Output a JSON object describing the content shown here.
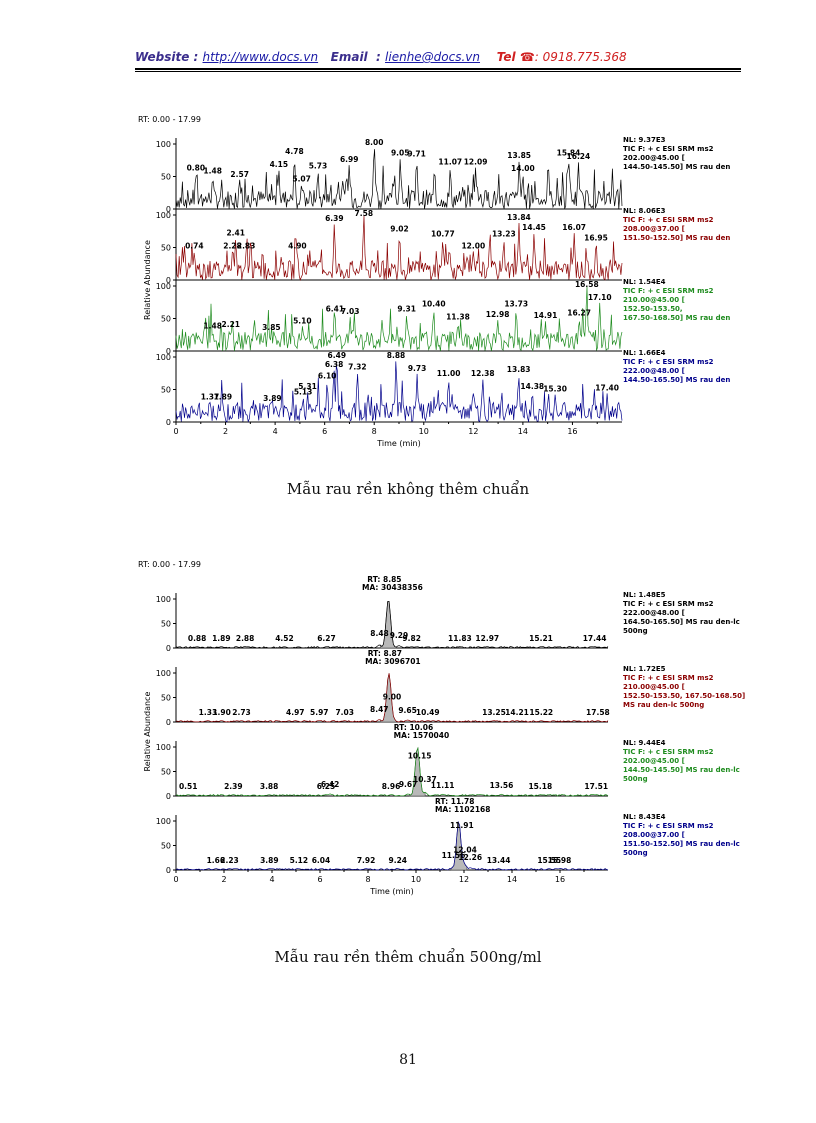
{
  "header": {
    "website_label": "Website :",
    "website_url": "http://www.docs.vn",
    "email_label": "Email",
    "email_colon": ":",
    "email_value": "lienhe@docs.vn",
    "tel_label": "Tel",
    "tel_icon": "phone-icon",
    "tel_value": ": 0918.775.368"
  },
  "colors": {
    "black": "#000000",
    "red": "#8b0000",
    "green": "#1f8c1f",
    "blue": "#00008b",
    "peak_fill": "#b8b8b8"
  },
  "chart_data": [
    {
      "type": "line",
      "rt_range": "RT: 0.00 - 17.99",
      "xlabel": "Time (min)",
      "ylabel": "Relative Abundance",
      "xlim": [
        0,
        18
      ],
      "ylim": [
        0,
        100
      ],
      "x_ticks": [
        "0",
        "2",
        "4",
        "6",
        "8",
        "10",
        "12",
        "14",
        "16"
      ],
      "y_ticks": [
        "0",
        "50",
        "100"
      ],
      "caption": "Mẫu rau rền không thêm chuẩn",
      "series": [
        {
          "name": "TIC F: + c ESI SRM ms2 202.00@45.00 [144.50-145.50] MS rau den",
          "color": "#000000",
          "info": [
            "NL: 9.37E3",
            "TIC F: + c ESI SRM ms2",
            "202.00@45.00 [",
            "144.50-145.50]  MS rau den"
          ],
          "peaks": [
            {
              "rt": 0.8,
              "label": "0.80",
              "y": 55
            },
            {
              "rt": 1.48,
              "label": "1.48",
              "y": 50
            },
            {
              "rt": 2.57,
              "label": "2.57",
              "y": 45
            },
            {
              "rt": 4.15,
              "label": "4.15",
              "y": 60
            },
            {
              "rt": 4.78,
              "label": "4.78",
              "y": 80
            },
            {
              "rt": 5.07,
              "label": "5.07",
              "y": 38
            },
            {
              "rt": 5.73,
              "label": "5.73",
              "y": 58
            },
            {
              "rt": 6.99,
              "label": "6.99",
              "y": 68
            },
            {
              "rt": 8.0,
              "label": "8.00",
              "y": 100
            },
            {
              "rt": 9.05,
              "label": "9.05",
              "y": 78
            },
            {
              "rt": 9.71,
              "label": "9.71",
              "y": 76
            },
            {
              "rt": 11.07,
              "label": "11.07",
              "y": 64
            },
            {
              "rt": 12.09,
              "label": "12.09",
              "y": 64
            },
            {
              "rt": 13.85,
              "label": "13.85",
              "y": 74
            },
            {
              "rt": 14.0,
              "label": "14.00",
              "y": 54
            },
            {
              "rt": 15.84,
              "label": "15.84",
              "y": 78
            },
            {
              "rt": 16.24,
              "label": "16.24",
              "y": 72
            }
          ]
        },
        {
          "name": "TIC F: + c ESI SRM ms2 208.00@37.00 [151.50-152.50] MS rau den",
          "color": "#8b0000",
          "info": [
            "NL: 8.06E3",
            "TIC F: + c ESI SRM ms2",
            "208.00@37.00 [",
            "151.50-152.50]  MS rau den"
          ],
          "peaks": [
            {
              "rt": 0.74,
              "label": "0.74",
              "y": 44
            },
            {
              "rt": 2.28,
              "label": "2.28",
              "y": 44
            },
            {
              "rt": 2.41,
              "label": "2.41",
              "y": 64
            },
            {
              "rt": 2.83,
              "label": "2.83",
              "y": 44
            },
            {
              "rt": 4.9,
              "label": "4.90",
              "y": 44
            },
            {
              "rt": 6.39,
              "label": "6.39",
              "y": 86
            },
            {
              "rt": 7.58,
              "label": "7.58",
              "y": 100
            },
            {
              "rt": 9.02,
              "label": "9.02",
              "y": 70
            },
            {
              "rt": 10.77,
              "label": "10.77",
              "y": 62
            },
            {
              "rt": 12.0,
              "label": "12.00",
              "y": 44
            },
            {
              "rt": 13.23,
              "label": "13.23",
              "y": 62
            },
            {
              "rt": 13.84,
              "label": "13.84",
              "y": 88
            },
            {
              "rt": 14.45,
              "label": "14.45",
              "y": 72
            },
            {
              "rt": 16.07,
              "label": "16.07",
              "y": 72
            },
            {
              "rt": 16.95,
              "label": "16.95",
              "y": 56
            }
          ]
        },
        {
          "name": "TIC F: + c ESI SRM ms2 210.00@45.00 [152.50-153.50, 167.50-168.50] MS rau den",
          "color": "#1f8c1f",
          "info": [
            "NL: 1.54E4",
            "TIC F: + c ESI SRM ms2",
            "210.00@45.00 [",
            "152.50-153.50,",
            "167.50-168.50]  MS rau den"
          ],
          "peaks": [
            {
              "rt": 1.48,
              "label": "1.48",
              "y": 30
            },
            {
              "rt": 2.21,
              "label": "2.21",
              "y": 32
            },
            {
              "rt": 3.85,
              "label": "3.85",
              "y": 28
            },
            {
              "rt": 5.1,
              "label": "5.10",
              "y": 38
            },
            {
              "rt": 6.41,
              "label": "6.41",
              "y": 56
            },
            {
              "rt": 7.03,
              "label": "7.03",
              "y": 52
            },
            {
              "rt": 9.31,
              "label": "9.31",
              "y": 56
            },
            {
              "rt": 10.4,
              "label": "10.40",
              "y": 64
            },
            {
              "rt": 11.38,
              "label": "11.38",
              "y": 44
            },
            {
              "rt": 12.98,
              "label": "12.98",
              "y": 48
            },
            {
              "rt": 13.73,
              "label": "13.73",
              "y": 64
            },
            {
              "rt": 14.91,
              "label": "14.91",
              "y": 46
            },
            {
              "rt": 16.27,
              "label": "16.27",
              "y": 50
            },
            {
              "rt": 16.58,
              "label": "16.58",
              "y": 100
            },
            {
              "rt": 17.1,
              "label": "17.10",
              "y": 74
            }
          ]
        },
        {
          "name": "TIC F: + c ESI SRM ms2 222.00@48.00 [144.50-165.50] MS rau den",
          "color": "#00008b",
          "info": [
            "NL: 1.66E4",
            "TIC F: + c ESI SRM ms2",
            "222.00@48.00 [",
            "144.50-165.50]  MS rau den"
          ],
          "peaks": [
            {
              "rt": 1.37,
              "label": "1.37",
              "y": 30
            },
            {
              "rt": 1.89,
              "label": "1.89",
              "y": 30
            },
            {
              "rt": 3.89,
              "label": "3.89",
              "y": 28
            },
            {
              "rt": 5.13,
              "label": "5.13",
              "y": 38
            },
            {
              "rt": 5.31,
              "label": "5.31",
              "y": 46
            },
            {
              "rt": 6.1,
              "label": "6.10",
              "y": 62
            },
            {
              "rt": 6.38,
              "label": "6.38",
              "y": 80
            },
            {
              "rt": 6.49,
              "label": "6.49",
              "y": 100
            },
            {
              "rt": 7.32,
              "label": "7.32",
              "y": 76
            },
            {
              "rt": 8.88,
              "label": "8.88",
              "y": 96
            },
            {
              "rt": 9.73,
              "label": "9.73",
              "y": 74
            },
            {
              "rt": 11.0,
              "label": "11.00",
              "y": 66
            },
            {
              "rt": 12.38,
              "label": "12.38",
              "y": 66
            },
            {
              "rt": 13.83,
              "label": "13.83",
              "y": 72
            },
            {
              "rt": 14.38,
              "label": "14.38",
              "y": 46
            },
            {
              "rt": 15.3,
              "label": "15.30",
              "y": 42
            },
            {
              "rt": 17.4,
              "label": "17.40",
              "y": 44
            }
          ]
        }
      ]
    },
    {
      "type": "line",
      "rt_range": "RT: 0.00 - 17.99",
      "xlabel": "Time (min)",
      "ylabel": "Relative Abundance",
      "xlim": [
        0,
        18
      ],
      "ylim": [
        0,
        100
      ],
      "x_ticks": [
        "0",
        "2",
        "4",
        "6",
        "8",
        "10",
        "12",
        "14",
        "16"
      ],
      "y_ticks": [
        "0",
        "50",
        "100"
      ],
      "caption": "Mẫu rau rền thêm chuẩn 500ng/ml",
      "series": [
        {
          "name": "TIC F: + c ESI SRM ms2 222.00@48.00 [164.50-165.50] MS rau den-lc 500ng",
          "color": "#000000",
          "info": [
            "NL: 1.48E5",
            "TIC F: + c ESI SRM ms2",
            "222.00@48.00 [",
            "164.50-165.50]  MS rau den-lc",
            "500ng"
          ],
          "main_peak": {
            "rt": 8.85,
            "rt_label": "RT: 8.85",
            "ma_label": "MA: 30438356"
          },
          "peaks": [
            {
              "rt": 0.88,
              "label": "0.88",
              "y": 8
            },
            {
              "rt": 1.89,
              "label": "1.89",
              "y": 8
            },
            {
              "rt": 2.88,
              "label": "2.88",
              "y": 8
            },
            {
              "rt": 4.52,
              "label": "4.52",
              "y": 8
            },
            {
              "rt": 6.27,
              "label": "6.27",
              "y": 8
            },
            {
              "rt": 8.48,
              "label": "8.48",
              "y": 18
            },
            {
              "rt": 9.29,
              "label": "9.29",
              "y": 14
            },
            {
              "rt": 9.82,
              "label": "9.82",
              "y": 8
            },
            {
              "rt": 11.83,
              "label": "11.83",
              "y": 8
            },
            {
              "rt": 12.97,
              "label": "12.97",
              "y": 8
            },
            {
              "rt": 15.21,
              "label": "15.21",
              "y": 8
            },
            {
              "rt": 17.44,
              "label": "17.44",
              "y": 8
            }
          ]
        },
        {
          "name": "TIC F: + c ESI SRM ms2 210.00@45.00 [152.50-153.50, 167.50-168.50] MS rau den-lc 500ng",
          "color": "#8b0000",
          "info": [
            "NL: 1.72E5",
            "TIC F: + c ESI SRM ms2",
            "210.00@45.00 [",
            "152.50-153.50, 167.50-168.50]",
            "MS rau den-lc 500ng"
          ],
          "main_peak": {
            "rt": 8.87,
            "rt_label": "RT: 8.87",
            "ma_label": "MA: 3096701"
          },
          "peaks": [
            {
              "rt": 1.33,
              "label": "1.33",
              "y": 8
            },
            {
              "rt": 1.9,
              "label": "1.90",
              "y": 8
            },
            {
              "rt": 2.73,
              "label": "2.73",
              "y": 8
            },
            {
              "rt": 4.97,
              "label": "4.97",
              "y": 8
            },
            {
              "rt": 5.97,
              "label": "5.97",
              "y": 8
            },
            {
              "rt": 7.03,
              "label": "7.03",
              "y": 8
            },
            {
              "rt": 8.47,
              "label": "8.47",
              "y": 14
            },
            {
              "rt": 9.0,
              "label": "9.00",
              "y": 40
            },
            {
              "rt": 9.65,
              "label": "9.65",
              "y": 12
            },
            {
              "rt": 10.49,
              "label": "10.49",
              "y": 8
            },
            {
              "rt": 13.25,
              "label": "13.25",
              "y": 8
            },
            {
              "rt": 14.21,
              "label": "14.21",
              "y": 8
            },
            {
              "rt": 15.22,
              "label": "15.22",
              "y": 8
            },
            {
              "rt": 17.58,
              "label": "17.58",
              "y": 8
            }
          ]
        },
        {
          "name": "TIC F: + c ESI SRM ms2 202.00@45.00 [144.50-145.50] MS rau den-lc 500ng",
          "color": "#1f8c1f",
          "info": [
            "NL: 9.44E4",
            "TIC F: + c ESI SRM ms2",
            "202.00@45.00 [",
            "144.50-145.50]  MS rau den-lc",
            "500ng"
          ],
          "main_peak": {
            "rt": 10.06,
            "rt_label": "RT: 10.06",
            "ma_label": "MA: 1570040"
          },
          "peaks": [
            {
              "rt": 0.51,
              "label": "0.51",
              "y": 8
            },
            {
              "rt": 2.39,
              "label": "2.39",
              "y": 8
            },
            {
              "rt": 3.88,
              "label": "3.88",
              "y": 8
            },
            {
              "rt": 6.25,
              "label": "6.25",
              "y": 8
            },
            {
              "rt": 6.42,
              "label": "6.42",
              "y": 12
            },
            {
              "rt": 8.96,
              "label": "8.96",
              "y": 8
            },
            {
              "rt": 9.67,
              "label": "9.67",
              "y": 12
            },
            {
              "rt": 10.15,
              "label": "10.15",
              "y": 70
            },
            {
              "rt": 10.37,
              "label": "10.37",
              "y": 22
            },
            {
              "rt": 11.11,
              "label": "11.11",
              "y": 10
            },
            {
              "rt": 13.56,
              "label": "13.56",
              "y": 10
            },
            {
              "rt": 15.18,
              "label": "15.18",
              "y": 8
            },
            {
              "rt": 17.51,
              "label": "17.51",
              "y": 8
            }
          ]
        },
        {
          "name": "TIC F: + c ESI SRM ms2 208.00@37.00 [151.50-152.50] MS rau den-lc 500ng",
          "color": "#00008b",
          "info": [
            "NL: 8.43E4",
            "TIC F: + c ESI SRM ms2",
            "208.00@37.00 [",
            "151.50-152.50]  MS rau den-lc",
            "500ng"
          ],
          "main_peak": {
            "rt": 11.78,
            "rt_label": "RT: 11.78",
            "ma_label": "MA: 1102168"
          },
          "peaks": [
            {
              "rt": 1.66,
              "label": "1.66",
              "y": 8
            },
            {
              "rt": 2.23,
              "label": "2.23",
              "y": 8
            },
            {
              "rt": 3.89,
              "label": "3.89",
              "y": 8
            },
            {
              "rt": 5.12,
              "label": "5.12",
              "y": 8
            },
            {
              "rt": 6.04,
              "label": "6.04",
              "y": 8
            },
            {
              "rt": 7.92,
              "label": "7.92",
              "y": 8
            },
            {
              "rt": 9.24,
              "label": "9.24",
              "y": 8
            },
            {
              "rt": 11.56,
              "label": "11.56",
              "y": 18
            },
            {
              "rt": 11.91,
              "label": "11.91",
              "y": 80
            },
            {
              "rt": 12.04,
              "label": "12.04",
              "y": 30
            },
            {
              "rt": 12.26,
              "label": "12.26",
              "y": 14
            },
            {
              "rt": 13.44,
              "label": "13.44",
              "y": 8
            },
            {
              "rt": 15.55,
              "label": "15.55",
              "y": 8
            },
            {
              "rt": 15.98,
              "label": "15.98",
              "y": 8
            }
          ]
        }
      ]
    }
  ],
  "page_number": "81"
}
